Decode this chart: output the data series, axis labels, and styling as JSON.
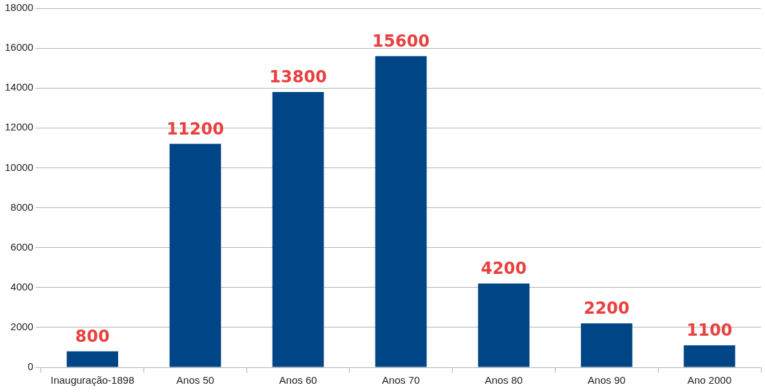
{
  "chart_data": {
    "type": "bar",
    "categories": [
      "Inauguração-1898",
      "Anos 50",
      "Anos 60",
      "Anos 70",
      "Anos 80",
      "Anos 90",
      "Ano 2000"
    ],
    "values": [
      800,
      11200,
      13800,
      15600,
      4200,
      2200,
      1100
    ],
    "color": "#004586",
    "ylim": [
      0,
      18000
    ],
    "yticks": [
      0,
      2000,
      4000,
      6000,
      8000,
      10000,
      12000,
      14000,
      16000,
      18000
    ],
    "grid": "y",
    "legend": false,
    "data_labels": true
  }
}
